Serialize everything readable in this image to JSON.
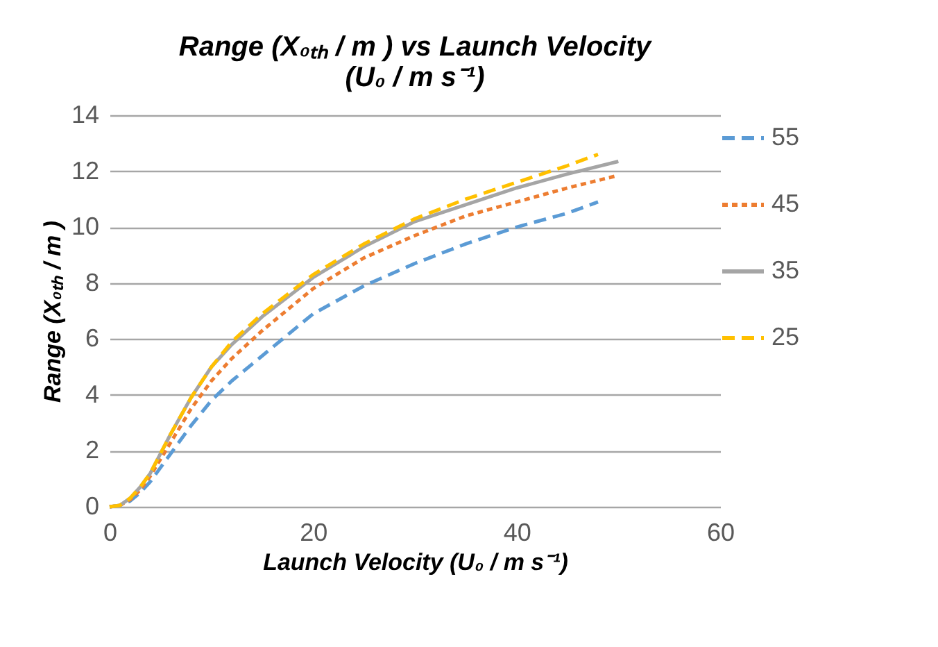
{
  "chart_data": {
    "type": "line",
    "title": "Range (X₀ₜₕ / m ) vs Launch Velocity (U₀ / m s⁻¹)",
    "xlabel": "Launch Velocity (U₀ / m s⁻¹)",
    "ylabel": "Range (X₀ₜₕ / m )",
    "xlim": [
      0,
      60
    ],
    "xticks": [
      0,
      20,
      40,
      60
    ],
    "ylim": [
      0,
      14
    ],
    "yticks": [
      0,
      2,
      4,
      6,
      8,
      10,
      12,
      14
    ],
    "grid": "y",
    "legend": "right",
    "marker": "none",
    "series": [
      {
        "name": "55",
        "color": "#5b9bd5",
        "line_style": "dashed",
        "x": [
          0,
          1,
          2,
          3,
          4,
          5,
          6,
          8,
          10,
          12,
          15,
          20,
          25,
          30,
          35,
          40,
          45,
          48
        ],
        "values": [
          0,
          0.05,
          0.2,
          0.5,
          0.9,
          1.4,
          1.9,
          2.9,
          3.8,
          4.5,
          5.4,
          6.9,
          7.9,
          8.7,
          9.4,
          10.0,
          10.5,
          10.9
        ]
      },
      {
        "name": "45",
        "color": "#ed7d31",
        "line_style": "dotted",
        "x": [
          0,
          1,
          2,
          3,
          4,
          5,
          6,
          8,
          10,
          12,
          15,
          20,
          25,
          30,
          35,
          40,
          45,
          50
        ],
        "values": [
          0,
          0.05,
          0.25,
          0.6,
          1.1,
          1.7,
          2.3,
          3.5,
          4.5,
          5.3,
          6.3,
          7.8,
          8.9,
          9.7,
          10.4,
          10.9,
          11.4,
          11.85
        ]
      },
      {
        "name": "35",
        "color": "#a5a5a5",
        "line_style": "solid",
        "x": [
          0,
          1,
          2,
          3,
          4,
          5,
          6,
          8,
          10,
          12,
          15,
          20,
          25,
          30,
          35,
          40,
          45,
          50
        ],
        "values": [
          0,
          0.05,
          0.3,
          0.7,
          1.2,
          1.9,
          2.6,
          3.9,
          5.0,
          5.8,
          6.8,
          8.2,
          9.3,
          10.2,
          10.8,
          11.4,
          11.9,
          12.35
        ]
      },
      {
        "name": "25",
        "color": "#ffc000",
        "line_style": "dashed",
        "x": [
          0,
          1,
          2,
          3,
          4,
          5,
          6,
          8,
          10,
          12,
          15,
          20,
          25,
          30,
          35,
          40,
          45,
          48
        ],
        "values": [
          0,
          0.05,
          0.3,
          0.7,
          1.2,
          1.9,
          2.6,
          3.9,
          5.0,
          5.9,
          6.9,
          8.3,
          9.4,
          10.3,
          11.0,
          11.6,
          12.2,
          12.6
        ]
      }
    ]
  }
}
